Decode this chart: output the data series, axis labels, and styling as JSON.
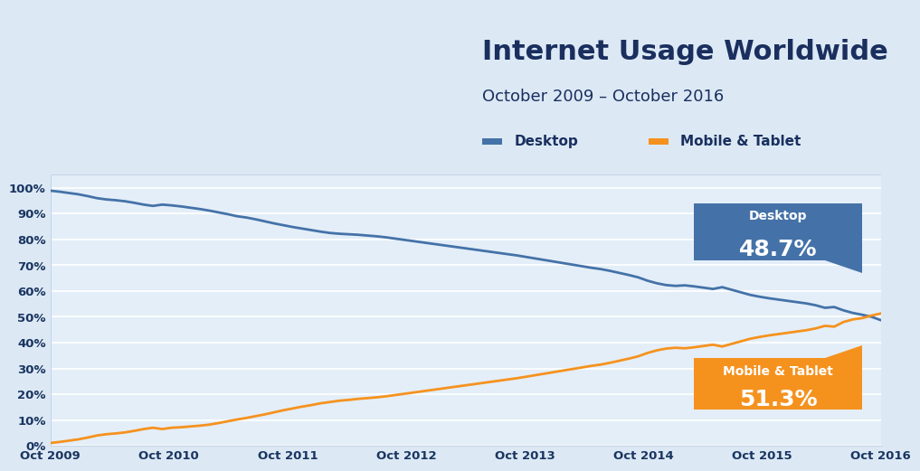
{
  "title": "Internet Usage Worldwide",
  "subtitle": "October 2009 – October 2016",
  "desktop_color": "#4472a8",
  "mobile_color": "#f5921e",
  "header_bg": "#ffffff",
  "chart_bg": "#dce9f5",
  "plot_bg": "#e4eef8",
  "grid_color": "#ffffff",
  "border_color": "#c5d5e8",
  "tick_color": "#1a3560",
  "x_labels": [
    "Oct 2009",
    "Oct 2010",
    "Oct 2011",
    "Oct 2012",
    "Oct 2013",
    "Oct 2014",
    "Oct 2015",
    "Oct 2016"
  ],
  "desktop_label": "Desktop",
  "desktop_pct": "48.7%",
  "mobile_label": "Mobile & Tablet",
  "mobile_pct": "51.3%",
  "desktop_box_color": "#4472a8",
  "mobile_box_color": "#f5921e",
  "desktop_data": [
    98.9,
    98.5,
    98.0,
    97.5,
    96.8,
    96.0,
    95.5,
    95.2,
    94.8,
    94.2,
    93.5,
    93.0,
    93.5,
    93.2,
    92.8,
    92.3,
    91.8,
    91.2,
    90.5,
    89.8,
    89.0,
    88.5,
    87.8,
    87.0,
    86.2,
    85.5,
    84.8,
    84.2,
    83.6,
    83.0,
    82.5,
    82.2,
    82.0,
    81.8,
    81.5,
    81.2,
    80.8,
    80.3,
    79.8,
    79.3,
    78.8,
    78.3,
    77.8,
    77.3,
    76.8,
    76.3,
    75.8,
    75.3,
    74.8,
    74.3,
    73.8,
    73.2,
    72.6,
    72.0,
    71.4,
    70.8,
    70.2,
    69.6,
    69.0,
    68.5,
    67.8,
    67.0,
    66.2,
    65.3,
    64.0,
    63.0,
    62.3,
    62.0,
    62.2,
    61.8,
    61.3,
    60.8,
    61.5,
    60.5,
    59.5,
    58.5,
    57.8,
    57.2,
    56.7,
    56.2,
    55.7,
    55.2,
    54.5,
    53.5,
    53.8,
    52.5,
    51.5,
    50.8,
    50.0,
    48.7
  ],
  "mobile_data": [
    1.1,
    1.5,
    2.0,
    2.5,
    3.2,
    4.0,
    4.5,
    4.8,
    5.2,
    5.8,
    6.5,
    7.0,
    6.5,
    7.0,
    7.2,
    7.5,
    7.8,
    8.2,
    8.8,
    9.5,
    10.2,
    10.8,
    11.5,
    12.2,
    13.0,
    13.8,
    14.5,
    15.2,
    15.8,
    16.5,
    17.0,
    17.5,
    17.8,
    18.2,
    18.5,
    18.8,
    19.2,
    19.7,
    20.2,
    20.7,
    21.2,
    21.7,
    22.2,
    22.7,
    23.2,
    23.7,
    24.2,
    24.7,
    25.2,
    25.7,
    26.2,
    26.8,
    27.4,
    28.0,
    28.6,
    29.2,
    29.8,
    30.4,
    31.0,
    31.5,
    32.2,
    33.0,
    33.8,
    34.7,
    36.0,
    37.0,
    37.7,
    38.0,
    37.8,
    38.2,
    38.7,
    39.2,
    38.5,
    39.5,
    40.5,
    41.5,
    42.2,
    42.8,
    43.3,
    43.8,
    44.3,
    44.8,
    45.5,
    46.5,
    46.2,
    48.0,
    49.0,
    49.5,
    50.5,
    51.3
  ]
}
